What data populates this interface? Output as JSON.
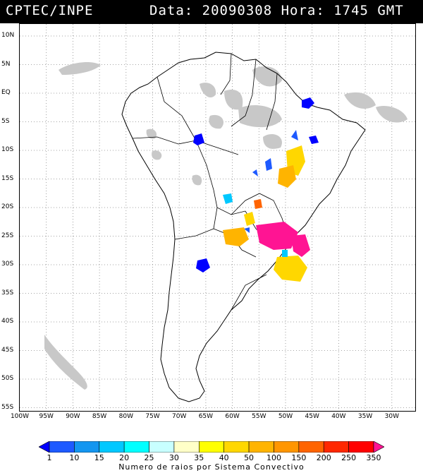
{
  "header": {
    "source": "CPTEC/INPE",
    "datetime": "Data: 20090308 Hora: 1745 GMT"
  },
  "map": {
    "lat_labels": [
      "10N",
      "5N",
      "EQ",
      "5S",
      "10S",
      "15S",
      "20S",
      "25S",
      "30S",
      "35S",
      "40S",
      "45S",
      "50S",
      "55S"
    ],
    "lon_labels": [
      "100W",
      "95W",
      "90W",
      "85W",
      "80W",
      "75W",
      "70W",
      "65W",
      "60W",
      "55W",
      "50W",
      "45W",
      "40W",
      "35W",
      "30W"
    ],
    "cloud_color": "#c8c8c8",
    "border_color": "#000000",
    "gridline": "dotted"
  },
  "legend": {
    "values": [
      "1",
      "10",
      "15",
      "20",
      "25",
      "30",
      "35",
      "40",
      "50",
      "100",
      "150",
      "200",
      "250",
      "350"
    ],
    "colors": [
      "#0000ff",
      "#1e5aff",
      "#1496f0",
      "#00c8ff",
      "#00ffff",
      "#c8ffff",
      "#ffffc8",
      "#ffff00",
      "#ffd700",
      "#ffb400",
      "#ff9600",
      "#ff6400",
      "#ff2800",
      "#ff0000",
      "#ff1493"
    ],
    "caption": "Numero de raios por Sistema Convectivo"
  }
}
